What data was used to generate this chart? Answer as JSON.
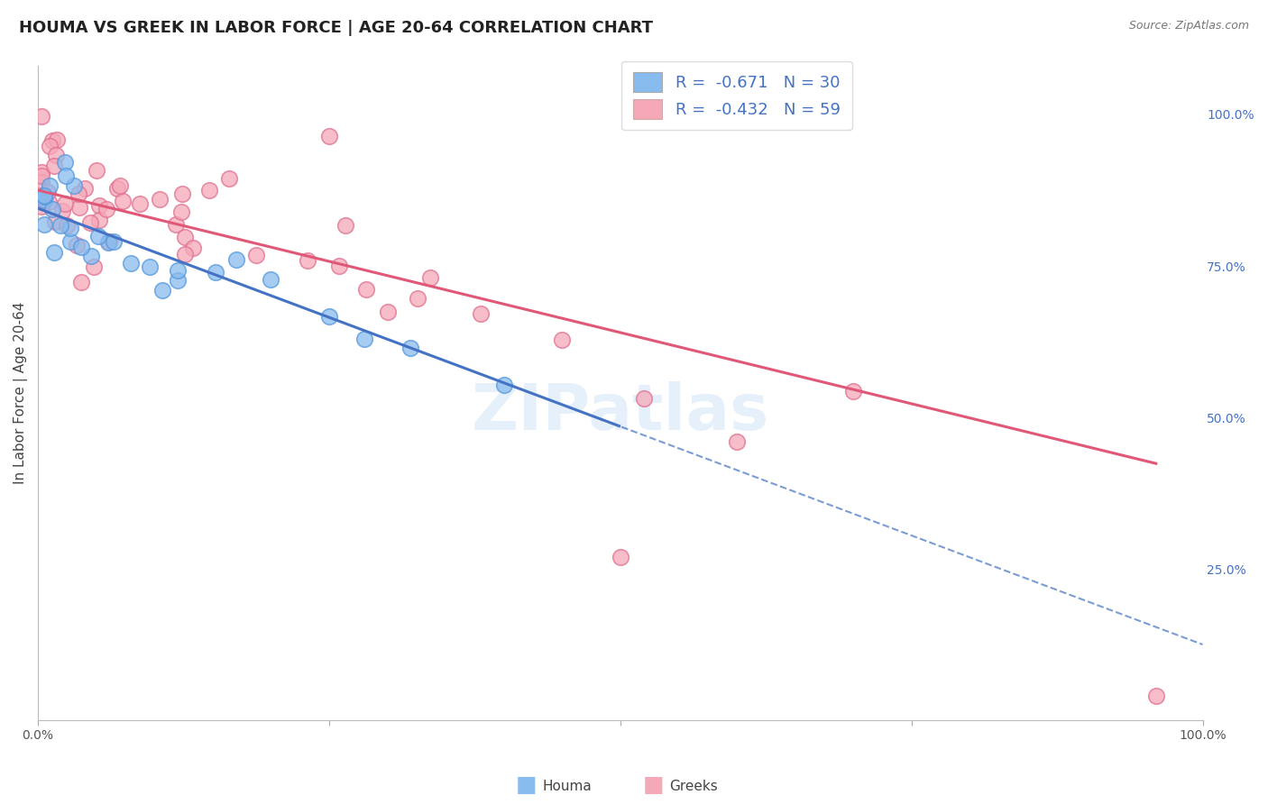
{
  "title": "HOUMA VS GREEK IN LABOR FORCE | AGE 20-64 CORRELATION CHART",
  "source": "Source: ZipAtlas.com",
  "ylabel": "In Labor Force | Age 20-64",
  "xlim": [
    0.0,
    1.0
  ],
  "ylim": [
    0.0,
    1.08
  ],
  "ytick_labels": [
    "25.0%",
    "50.0%",
    "75.0%",
    "100.0%"
  ],
  "ytick_positions": [
    0.25,
    0.5,
    0.75,
    1.0
  ],
  "houma_color": "#88bbee",
  "greek_color": "#f5a8b8",
  "houma_line_color": "#4472c4",
  "greek_line_color": "#e05878",
  "houma_edge_color": "#5599dd",
  "greek_edge_color": "#e07090",
  "legend_R_houma": "-0.671",
  "legend_N_houma": "30",
  "legend_R_greek": "-0.432",
  "legend_N_greek": "59",
  "houma_intercept": 0.845,
  "houma_slope": -0.72,
  "greek_intercept": 0.875,
  "greek_slope": -0.47,
  "title_fontsize": 13,
  "axis_label_fontsize": 11,
  "tick_fontsize": 10,
  "watermark": "ZIPatlas",
  "background_color": "#ffffff",
  "grid_color": "#cccccc"
}
